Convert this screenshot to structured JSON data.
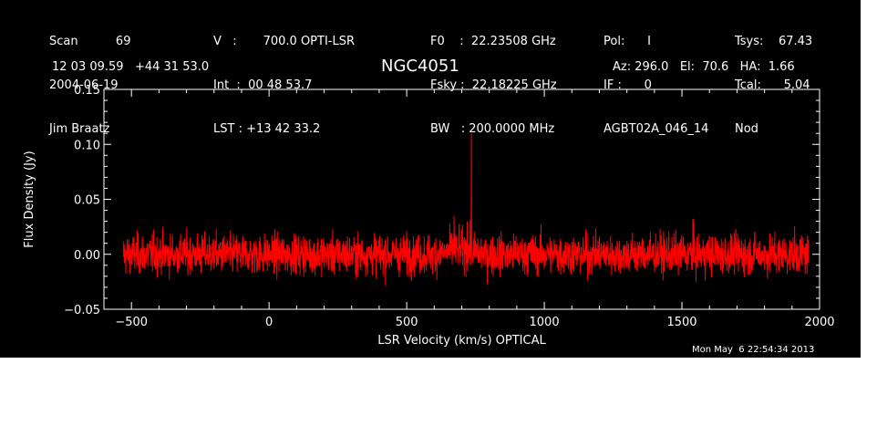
{
  "header": {
    "col1": [
      "Scan          69",
      "2004-06-19",
      "Jim Braatz"
    ],
    "col2": [
      "V   :       700.0 OPTI-LSR",
      "Int  :  00 48 53.7",
      "LST : +13 42 33.2"
    ],
    "col3": [
      "F0    :  22.23508 GHz",
      "Fsky :  22.18225 GHz",
      "BW   : 200.0000 MHz"
    ],
    "col4": [
      "Pol:      I",
      "IF :      0",
      "AGBT02A_046_14"
    ],
    "col5": [
      "Tsys:    67.43",
      "Tcal:      5.04",
      "Nod"
    ],
    "coords": "12 03 09.59   +44 31 53.0",
    "object": "NGC4051",
    "pointing": "Az: 296.0   El:  70.6   HA:  1.66",
    "timestamp": "Mon May  6 22:54:34 2013"
  },
  "colors": {
    "background": "#000000",
    "axes": "#ffffff",
    "trace": "#ff0000"
  },
  "chart_data": {
    "type": "line",
    "xlabel": "LSR Velocity (km/s) OPTICAL",
    "ylabel": "Flux Density (Jy)",
    "xlim": [
      -600,
      2000
    ],
    "ylim": [
      -0.05,
      0.15
    ],
    "xticks": [
      -500,
      0,
      500,
      1000,
      1500,
      2000
    ],
    "xtick_labels": [
      "−500",
      "0",
      "500",
      "1000",
      "1500",
      "2000"
    ],
    "yticks": [
      -0.05,
      0.0,
      0.05,
      0.1,
      0.15
    ],
    "ytick_labels": [
      "−0.05",
      "0.00",
      "0.05",
      "0.10",
      "0.15"
    ],
    "grid": false,
    "series": [
      {
        "x_range": [
          -530,
          1960
        ],
        "noise_rms": 0.009,
        "features": [
          {
            "x": 672,
            "y": 0.035
          },
          {
            "x": 690,
            "y": 0.025
          },
          {
            "x": 720,
            "y": 0.03
          },
          {
            "x": 735,
            "y": 0.11
          },
          {
            "x": 1540,
            "y": 0.032
          }
        ]
      }
    ]
  }
}
